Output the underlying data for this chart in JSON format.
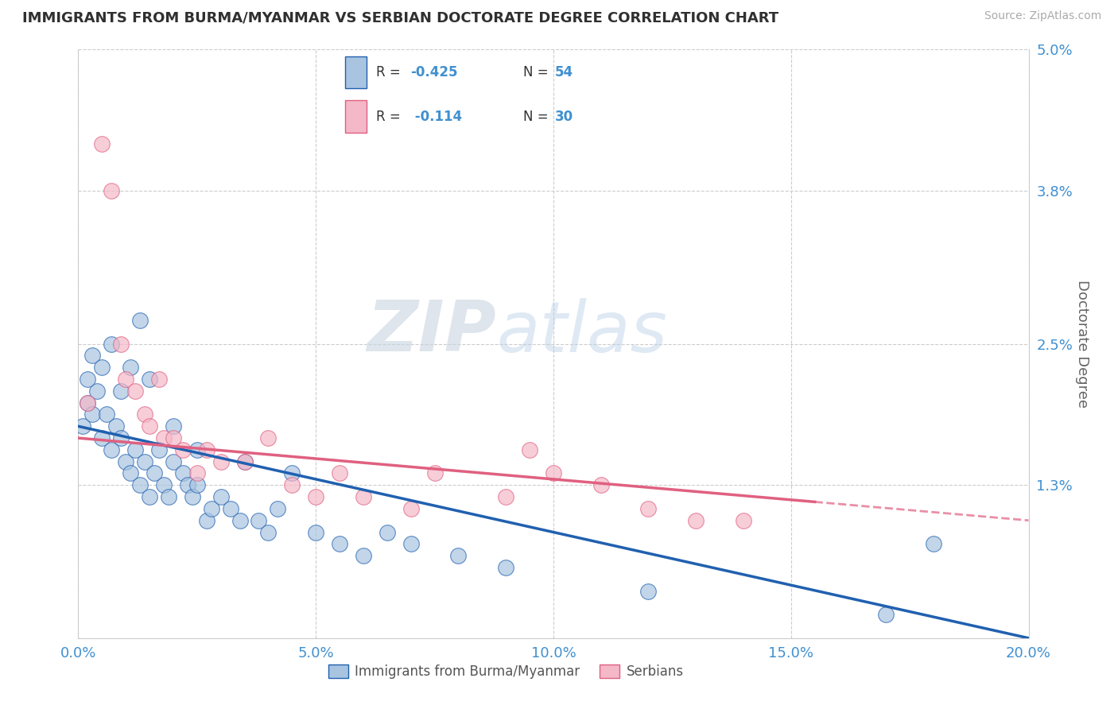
{
  "title": "IMMIGRANTS FROM BURMA/MYANMAR VS SERBIAN DOCTORATE DEGREE CORRELATION CHART",
  "source": "Source: ZipAtlas.com",
  "ylabel": "Doctorate Degree",
  "legend_label1": "Immigrants from Burma/Myanmar",
  "legend_label2": "Serbians",
  "r1": -0.425,
  "n1": 54,
  "r2": -0.114,
  "n2": 30,
  "xlim": [
    0.0,
    0.2
  ],
  "ylim": [
    0.0,
    0.05
  ],
  "yticks": [
    0.0,
    0.013,
    0.025,
    0.038,
    0.05
  ],
  "ytick_labels": [
    "",
    "1.3%",
    "2.5%",
    "3.8%",
    "5.0%"
  ],
  "xticks": [
    0.0,
    0.05,
    0.1,
    0.15,
    0.2
  ],
  "xtick_labels": [
    "0.0%",
    "5.0%",
    "10.0%",
    "15.0%",
    "20.0%"
  ],
  "color1": "#a8c4e0",
  "color2": "#f4b8c8",
  "line_color1": "#2060b0",
  "line_color2": "#e06080",
  "tick_color": "#4090d0",
  "title_color": "#303030",
  "scatter1_x": [
    0.001,
    0.002,
    0.003,
    0.004,
    0.005,
    0.006,
    0.007,
    0.008,
    0.009,
    0.01,
    0.011,
    0.012,
    0.013,
    0.014,
    0.015,
    0.016,
    0.017,
    0.018,
    0.019,
    0.02,
    0.022,
    0.023,
    0.024,
    0.025,
    0.027,
    0.028,
    0.03,
    0.032,
    0.034,
    0.038,
    0.04,
    0.042,
    0.05,
    0.055,
    0.06,
    0.065,
    0.07,
    0.08,
    0.09,
    0.12,
    0.002,
    0.003,
    0.005,
    0.007,
    0.009,
    0.011,
    0.013,
    0.015,
    0.02,
    0.025,
    0.035,
    0.045,
    0.17,
    0.18
  ],
  "scatter1_y": [
    0.018,
    0.02,
    0.019,
    0.021,
    0.017,
    0.019,
    0.016,
    0.018,
    0.017,
    0.015,
    0.014,
    0.016,
    0.013,
    0.015,
    0.012,
    0.014,
    0.016,
    0.013,
    0.012,
    0.015,
    0.014,
    0.013,
    0.012,
    0.013,
    0.01,
    0.011,
    0.012,
    0.011,
    0.01,
    0.01,
    0.009,
    0.011,
    0.009,
    0.008,
    0.007,
    0.009,
    0.008,
    0.007,
    0.006,
    0.004,
    0.022,
    0.024,
    0.023,
    0.025,
    0.021,
    0.023,
    0.027,
    0.022,
    0.018,
    0.016,
    0.015,
    0.014,
    0.002,
    0.008
  ],
  "scatter2_x": [
    0.002,
    0.005,
    0.007,
    0.009,
    0.01,
    0.012,
    0.014,
    0.015,
    0.017,
    0.018,
    0.02,
    0.022,
    0.025,
    0.027,
    0.03,
    0.035,
    0.04,
    0.045,
    0.05,
    0.055,
    0.06,
    0.07,
    0.075,
    0.09,
    0.095,
    0.1,
    0.11,
    0.12,
    0.13,
    0.14
  ],
  "scatter2_y": [
    0.02,
    0.042,
    0.038,
    0.025,
    0.022,
    0.021,
    0.019,
    0.018,
    0.022,
    0.017,
    0.017,
    0.016,
    0.014,
    0.016,
    0.015,
    0.015,
    0.017,
    0.013,
    0.012,
    0.014,
    0.012,
    0.011,
    0.014,
    0.012,
    0.016,
    0.014,
    0.013,
    0.011,
    0.01,
    0.01
  ],
  "line1_x0": 0.0,
  "line1_y0": 0.018,
  "line1_x1": 0.2,
  "line1_y1": 0.0,
  "line2_x0": 0.0,
  "line2_y0": 0.017,
  "line2_x1": 0.2,
  "line2_y1": 0.01,
  "line2_solid_end": 0.155
}
